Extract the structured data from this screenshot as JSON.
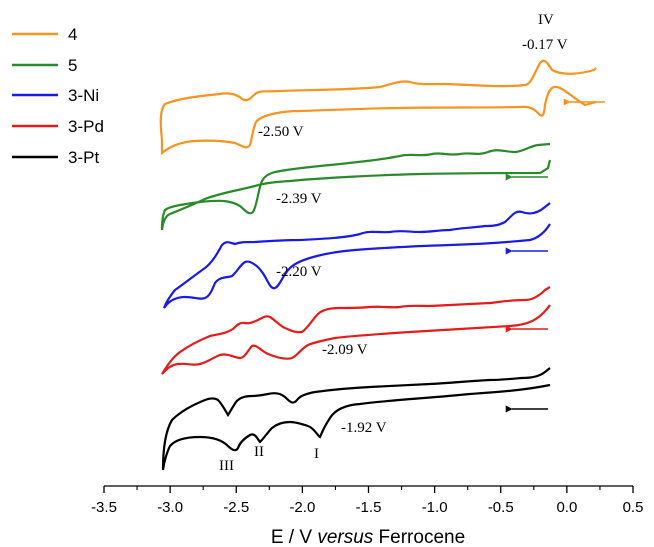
{
  "chart_data": {
    "type": "line",
    "title": "",
    "xlabel": "E / V versus Ferrocene",
    "xlabel_parts": [
      "E / V ",
      "versus",
      " Ferrocene"
    ],
    "ylabel": "",
    "xlim": [
      -3.5,
      0.5
    ],
    "xticks": [
      "-3.5",
      "-3.0",
      "-2.5",
      "-2.0",
      "-1.5",
      "-1.0",
      "-0.5",
      "0.0",
      "0.5"
    ],
    "y_axis_shown": false,
    "grid": false,
    "legend_position": "top-left",
    "series": [
      {
        "name": "4",
        "color": "#f7931e",
        "scan_start_V": 0.17,
        "scan_end_V": -3.09,
        "reduction_peak_V": -2.5,
        "return_peak_V": -0.17
      },
      {
        "name": "5",
        "color": "#2a8a2a",
        "scan_start_V": -0.17,
        "scan_end_V": -3.09,
        "reduction_peak_V": -2.39
      },
      {
        "name": "3-Ni",
        "color": "#1a1ae6",
        "scan_start_V": -0.17,
        "scan_end_V": -3.09,
        "reduction_peak_V": -2.2
      },
      {
        "name": "3-Pd",
        "color": "#e61a1a",
        "scan_start_V": -0.17,
        "scan_end_V": -3.09,
        "reduction_peak_V": -2.09
      },
      {
        "name": "3-Pt",
        "color": "#000000",
        "scan_start_V": -0.17,
        "scan_end_V": -3.09,
        "reduction_peak_V": -1.92
      }
    ],
    "annotations": [
      {
        "text": "-2.50 V",
        "series": "4"
      },
      {
        "text": "-2.39 V",
        "series": "5"
      },
      {
        "text": "-2.20 V",
        "series": "3-Ni"
      },
      {
        "text": "-2.09 V",
        "series": "3-Pd"
      },
      {
        "text": "-1.92 V",
        "series": "3-Pt"
      },
      {
        "text": "I",
        "series": "3-Pt"
      },
      {
        "text": "II",
        "series": "3-Pt"
      },
      {
        "text": "III",
        "series": "3-Pt"
      },
      {
        "text": "IV",
        "series": "4"
      },
      {
        "text": "-0.17 V",
        "series": "4"
      }
    ]
  }
}
